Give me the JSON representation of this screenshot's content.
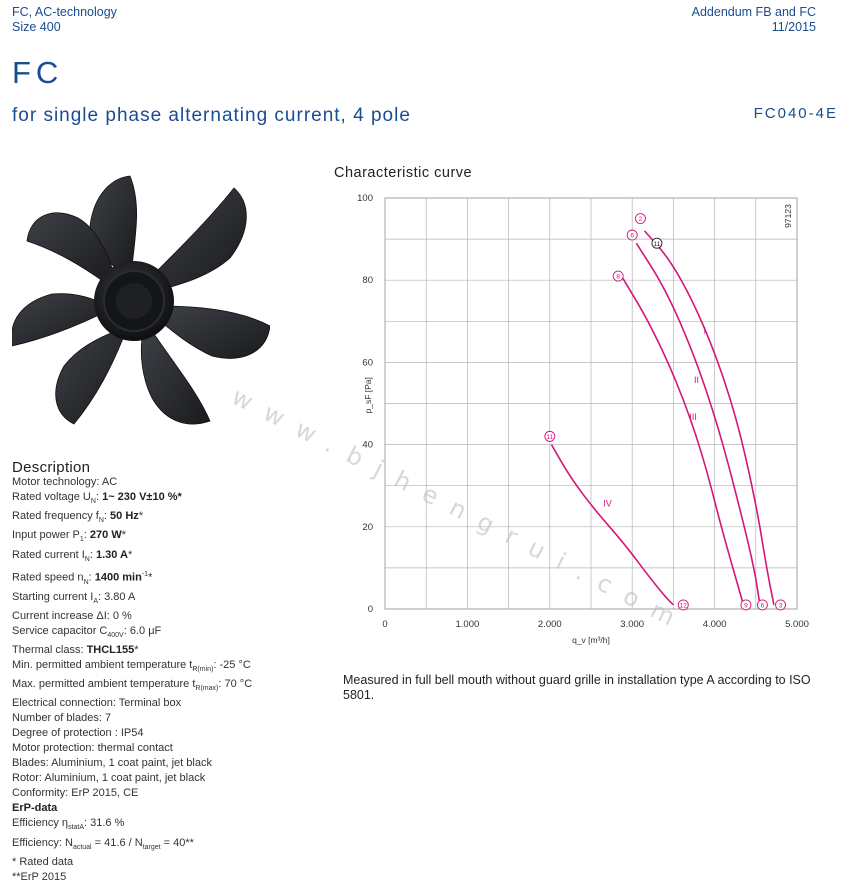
{
  "header": {
    "left_line1": "FC, AC-technology",
    "left_line2": "Size 400",
    "right_line1": "Addendum FB and FC",
    "right_line2": "11/2015"
  },
  "brand": "FC",
  "subtitle": "for single phase alternating current, 4 pole",
  "model": "FC040-4E",
  "description": {
    "title": "Description",
    "lines": {
      "motor_tech": "Motor technology: AC",
      "rated_voltage_label": "Rated voltage U",
      "rated_voltage_sub": "N",
      "rated_voltage_value": "1~ 230 V±10 %",
      "rated_freq_label": "Rated frequency f",
      "rated_freq_sub": "N",
      "rated_freq_value": "50 Hz",
      "input_power_label": "Input power P",
      "input_power_sub": "1",
      "input_power_value": "270 W",
      "rated_current_label": "Rated current I",
      "rated_current_sub": "N",
      "rated_current_value": "1.30 A",
      "rated_speed_label": "Rated speed n",
      "rated_speed_sub": "N",
      "rated_speed_value": "1400 min",
      "starting_current_label": "Starting current I",
      "starting_current_sub": "A",
      "starting_current_value": "3.80 A",
      "current_increase": "Current increase ΔI: 0 %",
      "capacitor_label": "Service capacitor C",
      "capacitor_sub": "400V",
      "capacitor_value": "6.0 μF",
      "thermal_class_label": "Thermal class: ",
      "thermal_class_value": "THCL155",
      "min_temp_label": "Min. permitted ambient temperature t",
      "min_temp_sub": "R(min)",
      "min_temp_value": "-25 °C",
      "max_temp_label": "Max. permitted ambient temperature t",
      "max_temp_sub": "R(max)",
      "max_temp_value": "70 °C",
      "electrical_connection": "Electrical connection: Terminal box",
      "blades_count": "Number of blades: 7",
      "protection_degree": "Degree of protection : IP54",
      "motor_protection": "Motor protection: thermal contact",
      "blades_material": "Blades: Aluminium, 1 coat paint, jet black",
      "rotor_material": "Rotor: Aluminium, 1 coat paint, jet black",
      "conformity": "Conformity: ErP 2015, CE",
      "erp_title": "ErP-data",
      "efficiency_label": "Efficiency η",
      "efficiency_sub": "statA",
      "efficiency_value": ": 31.6 %",
      "efficiency2_label": "Efficiency: N",
      "efficiency2_sub1": "actual",
      "efficiency2_mid": " = 41.6 / N",
      "efficiency2_sub2": "target",
      "efficiency2_value": " = 40**",
      "footnote1": "* Rated data",
      "footnote2": "**ErP 2015"
    }
  },
  "chart_title": "Characteristic curve",
  "note": "Measured in full bell mouth without guard grille in installation type A according to ISO 5801.",
  "watermark": "www.bjhengrui.com.cn",
  "colors": {
    "brand_blue": "#1a4d8f",
    "curve": "#d4177a",
    "grid": "#b5b5b5"
  },
  "chart_data": {
    "type": "line",
    "xlabel": "q_v [m³/h]",
    "ylabel": "p_sF [Pa]",
    "xlim": [
      0,
      5000
    ],
    "ylim": [
      0,
      100
    ],
    "xticks": [
      0,
      1000,
      2000,
      3000,
      4000,
      5000
    ],
    "xtick_labels": [
      "0",
      "1.000",
      "2.000",
      "3.000",
      "4.000",
      "5.000"
    ],
    "yticks": [
      0,
      20,
      40,
      60,
      80,
      100
    ],
    "ytick_labels": [
      "0",
      "20",
      "40",
      "60",
      "80",
      "100"
    ],
    "grid": true,
    "code_label": "97123",
    "series": [
      {
        "name": "I",
        "points": [
          [
            3150,
            92
          ],
          [
            3500,
            84
          ],
          [
            3900,
            68
          ],
          [
            4250,
            48
          ],
          [
            4500,
            26
          ],
          [
            4640,
            9
          ],
          [
            4720,
            1
          ]
        ]
      },
      {
        "name": "II",
        "points": [
          [
            3050,
            89
          ],
          [
            3400,
            78
          ],
          [
            3750,
            62
          ],
          [
            4050,
            44
          ],
          [
            4300,
            25
          ],
          [
            4480,
            10
          ],
          [
            4550,
            1
          ]
        ]
      },
      {
        "name": "III",
        "points": [
          [
            2870,
            81
          ],
          [
            3200,
            70
          ],
          [
            3550,
            55
          ],
          [
            3850,
            38
          ],
          [
            4080,
            20
          ],
          [
            4250,
            8
          ],
          [
            4350,
            1
          ]
        ]
      },
      {
        "name": "IV",
        "points": [
          [
            2020,
            40
          ],
          [
            2250,
            32
          ],
          [
            2550,
            24
          ],
          [
            2900,
            16
          ],
          [
            3200,
            8
          ],
          [
            3400,
            3
          ],
          [
            3500,
            1
          ]
        ]
      }
    ],
    "markers": [
      {
        "label": "2",
        "x": 3100,
        "y": 95
      },
      {
        "label": "6",
        "x": 3000,
        "y": 91
      },
      {
        "label": "11",
        "x": 3300,
        "y": 89
      },
      {
        "label": "8",
        "x": 2830,
        "y": 81
      },
      {
        "label": "11",
        "x": 2000,
        "y": 42
      },
      {
        "label": "3",
        "x": 4800,
        "y": 1
      },
      {
        "label": "6",
        "x": 4580,
        "y": 1
      },
      {
        "label": "9",
        "x": 4380,
        "y": 1
      },
      {
        "label": "12",
        "x": 3620,
        "y": 1
      }
    ],
    "series_labels": [
      {
        "label": "I",
        "x": 3880,
        "y": 67
      },
      {
        "label": "II",
        "x": 3780,
        "y": 55
      },
      {
        "label": "III",
        "x": 3740,
        "y": 46
      },
      {
        "label": "IV",
        "x": 2700,
        "y": 25
      }
    ]
  }
}
